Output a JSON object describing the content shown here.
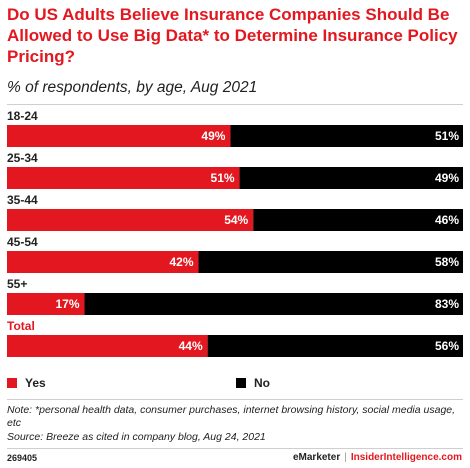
{
  "title": "Do US Adults Believe Insurance Companies Should Be Allowed to Use Big Data* to Determine Insurance Policy Pricing?",
  "subtitle": "% of respondents, by age, Aug 2021",
  "colors": {
    "yes": "#e3171f",
    "no": "#000000",
    "accent": "#e3171f"
  },
  "chart_data": {
    "type": "bar",
    "orientation": "horizontal",
    "stacked": true,
    "categories": [
      "18-24",
      "25-34",
      "35-44",
      "45-54",
      "55+",
      "Total"
    ],
    "series": [
      {
        "name": "Yes",
        "values": [
          49,
          51,
          54,
          42,
          17,
          44
        ],
        "labels": [
          "49%",
          "51%",
          "54%",
          "42%",
          "17%",
          "44%"
        ]
      },
      {
        "name": "No",
        "values": [
          51,
          49,
          46,
          58,
          83,
          56
        ],
        "labels": [
          "51%",
          "49%",
          "46%",
          "58%",
          "83%",
          "56%"
        ]
      }
    ],
    "xlim": [
      0,
      100
    ],
    "grid": false,
    "legend_position": "bottom",
    "highlight_category": "Total"
  },
  "legend": {
    "yes_label": "Yes",
    "no_label": "No"
  },
  "footer": {
    "note": "Note: *personal health data, consumer purchases, internet browsing history, social media usage, etc",
    "source": "Source: Breeze as cited in company blog, Aug 24, 2021",
    "chart_id": "269405",
    "brand_emarketer": "eMarketer",
    "brand_separator": "|",
    "brand_insider": "InsiderIntelligence.com"
  }
}
